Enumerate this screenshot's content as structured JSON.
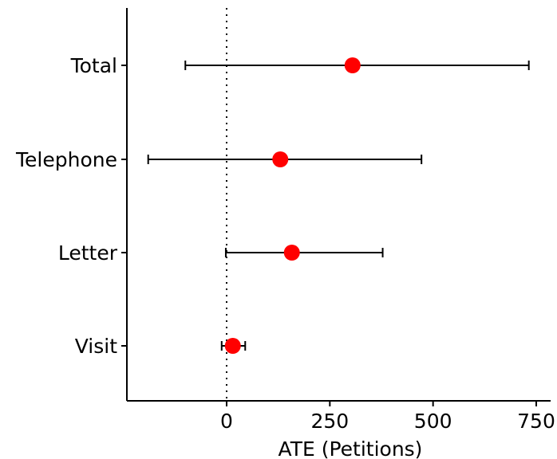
{
  "chart_data": {
    "type": "scatter",
    "subtype": "coefficient-plot",
    "xlabel": "ATE (Petitions)",
    "ylabel": "",
    "xlim": [
      -240,
      780
    ],
    "x_ticks": [
      0,
      250,
      500,
      750
    ],
    "x_tick_labels": [
      "0",
      "250",
      "500",
      "750"
    ],
    "categories": [
      "Total",
      "Telephone",
      "Letter",
      "Visit"
    ],
    "series": [
      {
        "points": [
          {
            "label": "Total",
            "estimate": 305,
            "ci_low": -100,
            "ci_high": 732
          },
          {
            "label": "Telephone",
            "estimate": 130,
            "ci_low": -190,
            "ci_high": 472
          },
          {
            "label": "Letter",
            "estimate": 158,
            "ci_low": -2,
            "ci_high": 378
          },
          {
            "label": "Visit",
            "estimate": 15,
            "ci_low": -12,
            "ci_high": 45
          }
        ]
      }
    ],
    "reference_line": {
      "x": 0,
      "style": "dotted"
    },
    "grid": false,
    "colors": {
      "point": "#ff0000",
      "errorbar": "#000000",
      "axis": "#000000"
    }
  }
}
